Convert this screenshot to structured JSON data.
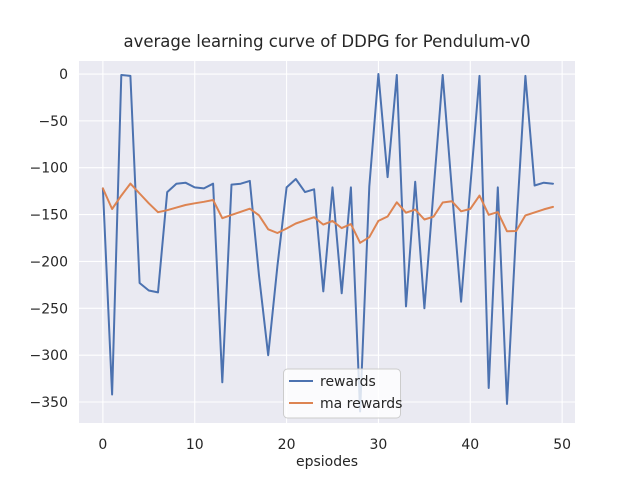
{
  "chart_data": {
    "type": "line",
    "title": "average learning curve of DDPG for Pendulum-v0",
    "xlabel": "epsiodes",
    "ylabel": "",
    "x": [
      0,
      1,
      2,
      3,
      4,
      5,
      6,
      7,
      8,
      9,
      10,
      11,
      12,
      13,
      14,
      15,
      16,
      17,
      18,
      19,
      20,
      21,
      22,
      23,
      24,
      25,
      26,
      27,
      28,
      29,
      30,
      31,
      32,
      33,
      34,
      35,
      36,
      37,
      38,
      39,
      40,
      41,
      42,
      43,
      44,
      45,
      46,
      47,
      48,
      49
    ],
    "series": [
      {
        "name": "rewards",
        "color": "#4c72b0",
        "values": [
          -122,
          -342,
          -1,
          -2,
          -223,
          -231,
          -233,
          -126,
          -117,
          -116,
          -121,
          -122,
          -117,
          -329,
          -118,
          -117,
          -114,
          -215,
          -300,
          -205,
          -121,
          -112,
          -126,
          -123,
          -232,
          -121,
          -234,
          -121,
          -360,
          -120,
          0,
          -110,
          -1,
          -248,
          -115,
          -250,
          -125,
          -1,
          -124,
          -243,
          -120,
          -2,
          -335,
          -121,
          -352,
          -165,
          -2,
          -119,
          -116,
          -117
        ]
      },
      {
        "name": "ma rewards",
        "color": "#dd8452",
        "values": [
          -122.0,
          -144.0,
          -129.7,
          -116.9,
          -127.5,
          -137.9,
          -147.4,
          -145.3,
          -142.5,
          -139.8,
          -137.9,
          -136.3,
          -134.4,
          -153.9,
          -150.3,
          -147.0,
          -143.7,
          -150.8,
          -165.7,
          -169.6,
          -164.8,
          -159.5,
          -156.1,
          -152.8,
          -160.7,
          -156.7,
          -164.4,
          -160.1,
          -180.1,
          -174.1,
          -156.7,
          -152.0,
          -136.9,
          -148.0,
          -144.7,
          -155.2,
          -152.2,
          -137.1,
          -135.8,
          -146.5,
          -143.9,
          -129.7,
          -150.2,
          -147.3,
          -167.8,
          -167.5,
          -150.9,
          -147.7,
          -144.5,
          -141.8
        ]
      }
    ],
    "xticks": [
      {
        "value": 0,
        "label": "0"
      },
      {
        "value": 10,
        "label": "10"
      },
      {
        "value": 20,
        "label": "20"
      },
      {
        "value": 30,
        "label": "30"
      },
      {
        "value": 40,
        "label": "40"
      },
      {
        "value": 50,
        "label": "50"
      }
    ],
    "yticks": [
      {
        "value": 0,
        "label": "0"
      },
      {
        "value": -50,
        "label": "−50"
      },
      {
        "value": -100,
        "label": "−100"
      },
      {
        "value": -150,
        "label": "−150"
      },
      {
        "value": -200,
        "label": "−200"
      },
      {
        "value": -250,
        "label": "−250"
      },
      {
        "value": -300,
        "label": "−300"
      },
      {
        "value": -350,
        "label": "−350"
      }
    ],
    "xlim": [
      -2.6,
      51.4
    ],
    "ylim": [
      -372.4,
      13.9
    ],
    "grid": true,
    "legend_position": "lower center",
    "colors": {
      "axes_background": "#eaeaf2",
      "grid": "#ffffff",
      "text": "#262626",
      "legend_face": "#ffffff",
      "legend_edge": "#cccccc"
    }
  }
}
